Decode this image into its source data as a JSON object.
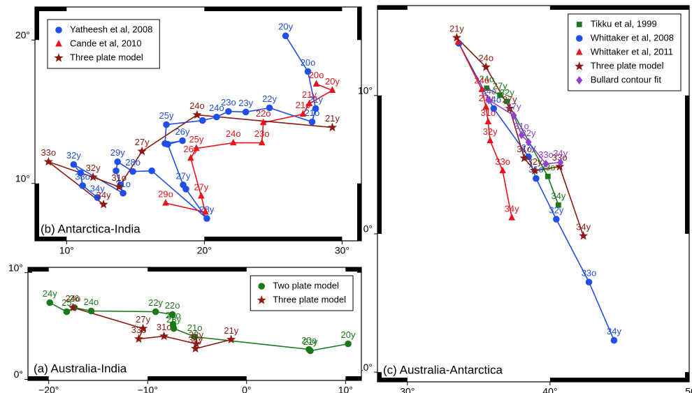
{
  "chart_data": [
    {
      "type": "scatter",
      "annotation": "(b) Antarctica-India",
      "legend": "upper left",
      "xlim": [
        7.7,
        31.4
      ],
      "ylim": [
        6.0,
        22.3
      ],
      "xticks": [
        {
          "value": 10,
          "label": "10°"
        },
        {
          "value": 20,
          "label": "20°"
        },
        {
          "value": 30,
          "label": "30°"
        }
      ],
      "yticks": [
        {
          "value": 10,
          "label": "10°"
        },
        {
          "value": 20,
          "label": "20°"
        }
      ],
      "series": [
        {
          "name": "Yatheesh et al, 2008",
          "color": "#1f4fe8",
          "marker": "circle",
          "x": [
            25.9,
            27.52,
            28.08,
            27.82,
            24.73,
            23.01,
            21.75,
            20.89,
            19.87,
            17.24,
            17.14,
            18.41,
            17.34,
            18.46,
            18.66,
            20.18,
            16.18,
            14.81,
            13.7,
            13.59,
            13.9,
            14.1,
            10.51,
            11.01,
            11.16,
            12.23
          ],
          "values": [
            20.29,
            17.8,
            15.22,
            14.29,
            15.27,
            14.98,
            15.02,
            14.63,
            14.39,
            14.1,
            12.78,
            12.98,
            12.73,
            9.9,
            9.61,
            7.56,
            10.88,
            10.83,
            11.51,
            10.88,
            9.9,
            9.32,
            11.32,
            10.73,
            9.85,
            9.02
          ],
          "labels": [
            "20y",
            "20o",
            "21y",
            "21o",
            "22y",
            "23y",
            "23o",
            "24o",
            null,
            "25y",
            null,
            "26y",
            null,
            "27y",
            null,
            "28y",
            null,
            "28o",
            "29y",
            null,
            null,
            "31o",
            "32y",
            null,
            "33o",
            "34y"
          ]
        },
        {
          "name": "Cande et al, 2010",
          "color": "#e8141b",
          "marker": "triangle",
          "x": [
            28.13,
            29.29,
            27.62,
            27.16,
            24.28,
            24.18,
            22.1,
            19.42,
            19.01,
            19.77,
            20.08,
            17.19
          ],
          "values": [
            16.93,
            16.49,
            15.56,
            14.83,
            14.24,
            12.83,
            12.83,
            12.44,
            11.76,
            9.12,
            8.0,
            8.63
          ],
          "labels": [
            "20o",
            "20y",
            "21y",
            "21o",
            "22o",
            "23o",
            "24o",
            "25y",
            "26y",
            "27y",
            null,
            "29o"
          ]
        },
        {
          "name": "Three plate model",
          "color": "#8b1a10",
          "marker": "star",
          "x": [
            29.29,
            19.47,
            15.47,
            13.8,
            11.92,
            8.68,
            12.68
          ],
          "values": [
            13.9,
            14.78,
            12.24,
            9.76,
            10.44,
            11.51,
            8.54
          ],
          "labels": [
            "21y",
            "24o",
            "27y",
            "31o",
            "32y",
            "33o",
            "34y"
          ]
        }
      ]
    },
    {
      "type": "scatter",
      "annotation": "(c) Australia-Antarctica",
      "legend": "upper right",
      "xlim": [
        27.9,
        49.76
      ],
      "ylim": [
        -10.7,
        16.5
      ],
      "xticks": [
        {
          "value": 30,
          "label": "30°"
        },
        {
          "value": 40,
          "label": "40°"
        },
        {
          "value": 50,
          "label": "50°"
        }
      ],
      "yticks": [
        {
          "value": -10,
          "label": "−10°"
        },
        {
          "value": 0,
          "label": "0°"
        },
        {
          "value": 10,
          "label": "10°"
        }
      ],
      "series": [
        {
          "name": "Tikku et al, 1999",
          "color": "#1a7a1a",
          "marker": "square",
          "x": [
            35.56,
            36.49,
            36.98,
            39.85,
            40.59
          ],
          "values": [
            10.53,
            10.03,
            9.57,
            4.15,
            2.08
          ],
          "labels": [
            "24o",
            "27y",
            "32y",
            "33o",
            "34y"
          ]
        },
        {
          "name": "Whittaker et al, 2008",
          "color": "#1f4fe8",
          "marker": "circle",
          "x": [
            33.61,
            36.05,
            38.49,
            39.02,
            40.44,
            42.73,
            44.49
          ],
          "values": [
            13.77,
            9.06,
            5.57,
            4.0,
            1.06,
            -3.49,
            -7.7
          ],
          "labels": [
            null,
            "24o",
            "27y",
            "31o",
            "32y",
            "33o",
            "34y"
          ]
        },
        {
          "name": "Whittaker et al, 2011",
          "color": "#e8141b",
          "marker": "triangle",
          "x": [
            33.56,
            35.22,
            35.51,
            35.66,
            35.8,
            36.68,
            37.32
          ],
          "values": [
            13.87,
            10.43,
            9.16,
            8.1,
            6.73,
            4.56,
            1.16
          ],
          "labels": [
            null,
            "24o",
            "27y",
            "31o",
            "32y",
            "33o",
            "34y"
          ]
        },
        {
          "name": "Three plate model",
          "color": "#8b1a10",
          "marker": "star",
          "x": [
            33.46,
            35.51,
            37.17,
            38.2,
            38.93,
            40.68,
            42.34
          ],
          "values": [
            14.18,
            12.05,
            9.06,
            5.47,
            4.56,
            4.86,
            -0.15
          ],
          "labels": [
            "21y",
            "24o",
            "27y",
            "31o",
            "32y",
            "33o",
            "34y"
          ]
        },
        {
          "name": "Bullard contour fit",
          "color": "#9440d0",
          "marker": "diamond",
          "x": [
            35.71,
            37.46,
            38.0,
            38.49,
            39.71,
            40.73
          ],
          "values": [
            9.67,
            8.56,
            7.14,
            6.63,
            5.06,
            5.16
          ],
          "labels": [
            "24o",
            "27y",
            "31o",
            "32y",
            "33o",
            "34y"
          ]
        }
      ]
    },
    {
      "type": "scatter",
      "annotation": "(a) Australia-India",
      "legend": "upper right",
      "xlim": [
        -22.1,
        11.6
      ],
      "ylim": [
        -0.1,
        10.5
      ],
      "xticks": [
        {
          "value": -20,
          "label": "−20°"
        },
        {
          "value": -10,
          "label": "−10°"
        },
        {
          "value": 0,
          "label": "0°"
        },
        {
          "value": 10,
          "label": "10°"
        }
      ],
      "yticks": [
        {
          "value": 0,
          "label": "0°"
        },
        {
          "value": 10,
          "label": "10°"
        }
      ],
      "series": [
        {
          "name": "Two plate model",
          "color": "#1a7a1a",
          "marker": "circle",
          "x": [
            -19.89,
            -18.19,
            -17.41,
            -15.71,
            -9.2,
            -7.5,
            -7.43,
            -7.36,
            -5.24,
            6.3,
            6.44,
            10.26
          ],
          "values": [
            7.19,
            6.34,
            6.73,
            6.41,
            6.34,
            6.08,
            5.16,
            4.77,
            3.99,
            2.81,
            2.68,
            3.33
          ],
          "labels": [
            "24y",
            "25",
            "26",
            "24o",
            "22y",
            "22o",
            "23o",
            "23y",
            "21o",
            "20o",
            "21y",
            "20y"
          ]
        },
        {
          "name": "Three plate model",
          "color": "#8b1a10",
          "marker": "star",
          "x": [
            -17.55,
            -10.47,
            -10.9,
            -8.35,
            -5.1,
            -5.17,
            -1.56
          ],
          "values": [
            6.73,
            4.77,
            3.79,
            4.05,
            3.33,
            2.88,
            3.73
          ],
          "labels": [
            "24o",
            "27y",
            "33o",
            "31o",
            "32y",
            "34y",
            "21y"
          ]
        }
      ]
    }
  ]
}
